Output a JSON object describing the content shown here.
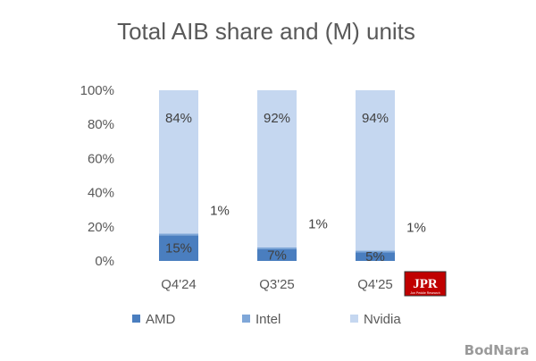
{
  "chart_data": {
    "type": "bar",
    "stacked": true,
    "title": "Total AIB share and (M) units",
    "categories": [
      "Q4'24",
      "Q3'25",
      "Q4'25"
    ],
    "series": [
      {
        "name": "AMD",
        "values": [
          15,
          7,
          5
        ],
        "labels": [
          "15%",
          "7%",
          "5%"
        ],
        "color": "#4a7ebf"
      },
      {
        "name": "Intel",
        "values": [
          1,
          1,
          1
        ],
        "labels": [
          "1%",
          "1%",
          "1%"
        ],
        "color": "#7fa7d8"
      },
      {
        "name": "Nvidia",
        "values": [
          84,
          92,
          94
        ],
        "labels": [
          "84%",
          "92%",
          "94%"
        ],
        "color": "#c5d7f0"
      }
    ],
    "yaxis": {
      "min": 0,
      "max": 100,
      "ticks": [
        "0%",
        "20%",
        "40%",
        "60%",
        "80%",
        "100%"
      ]
    },
    "grid": false,
    "legend_position": "bottom"
  },
  "logo": {
    "text": "JPR",
    "subtext": "Jon Peddie Research"
  },
  "watermark": "BodNara"
}
